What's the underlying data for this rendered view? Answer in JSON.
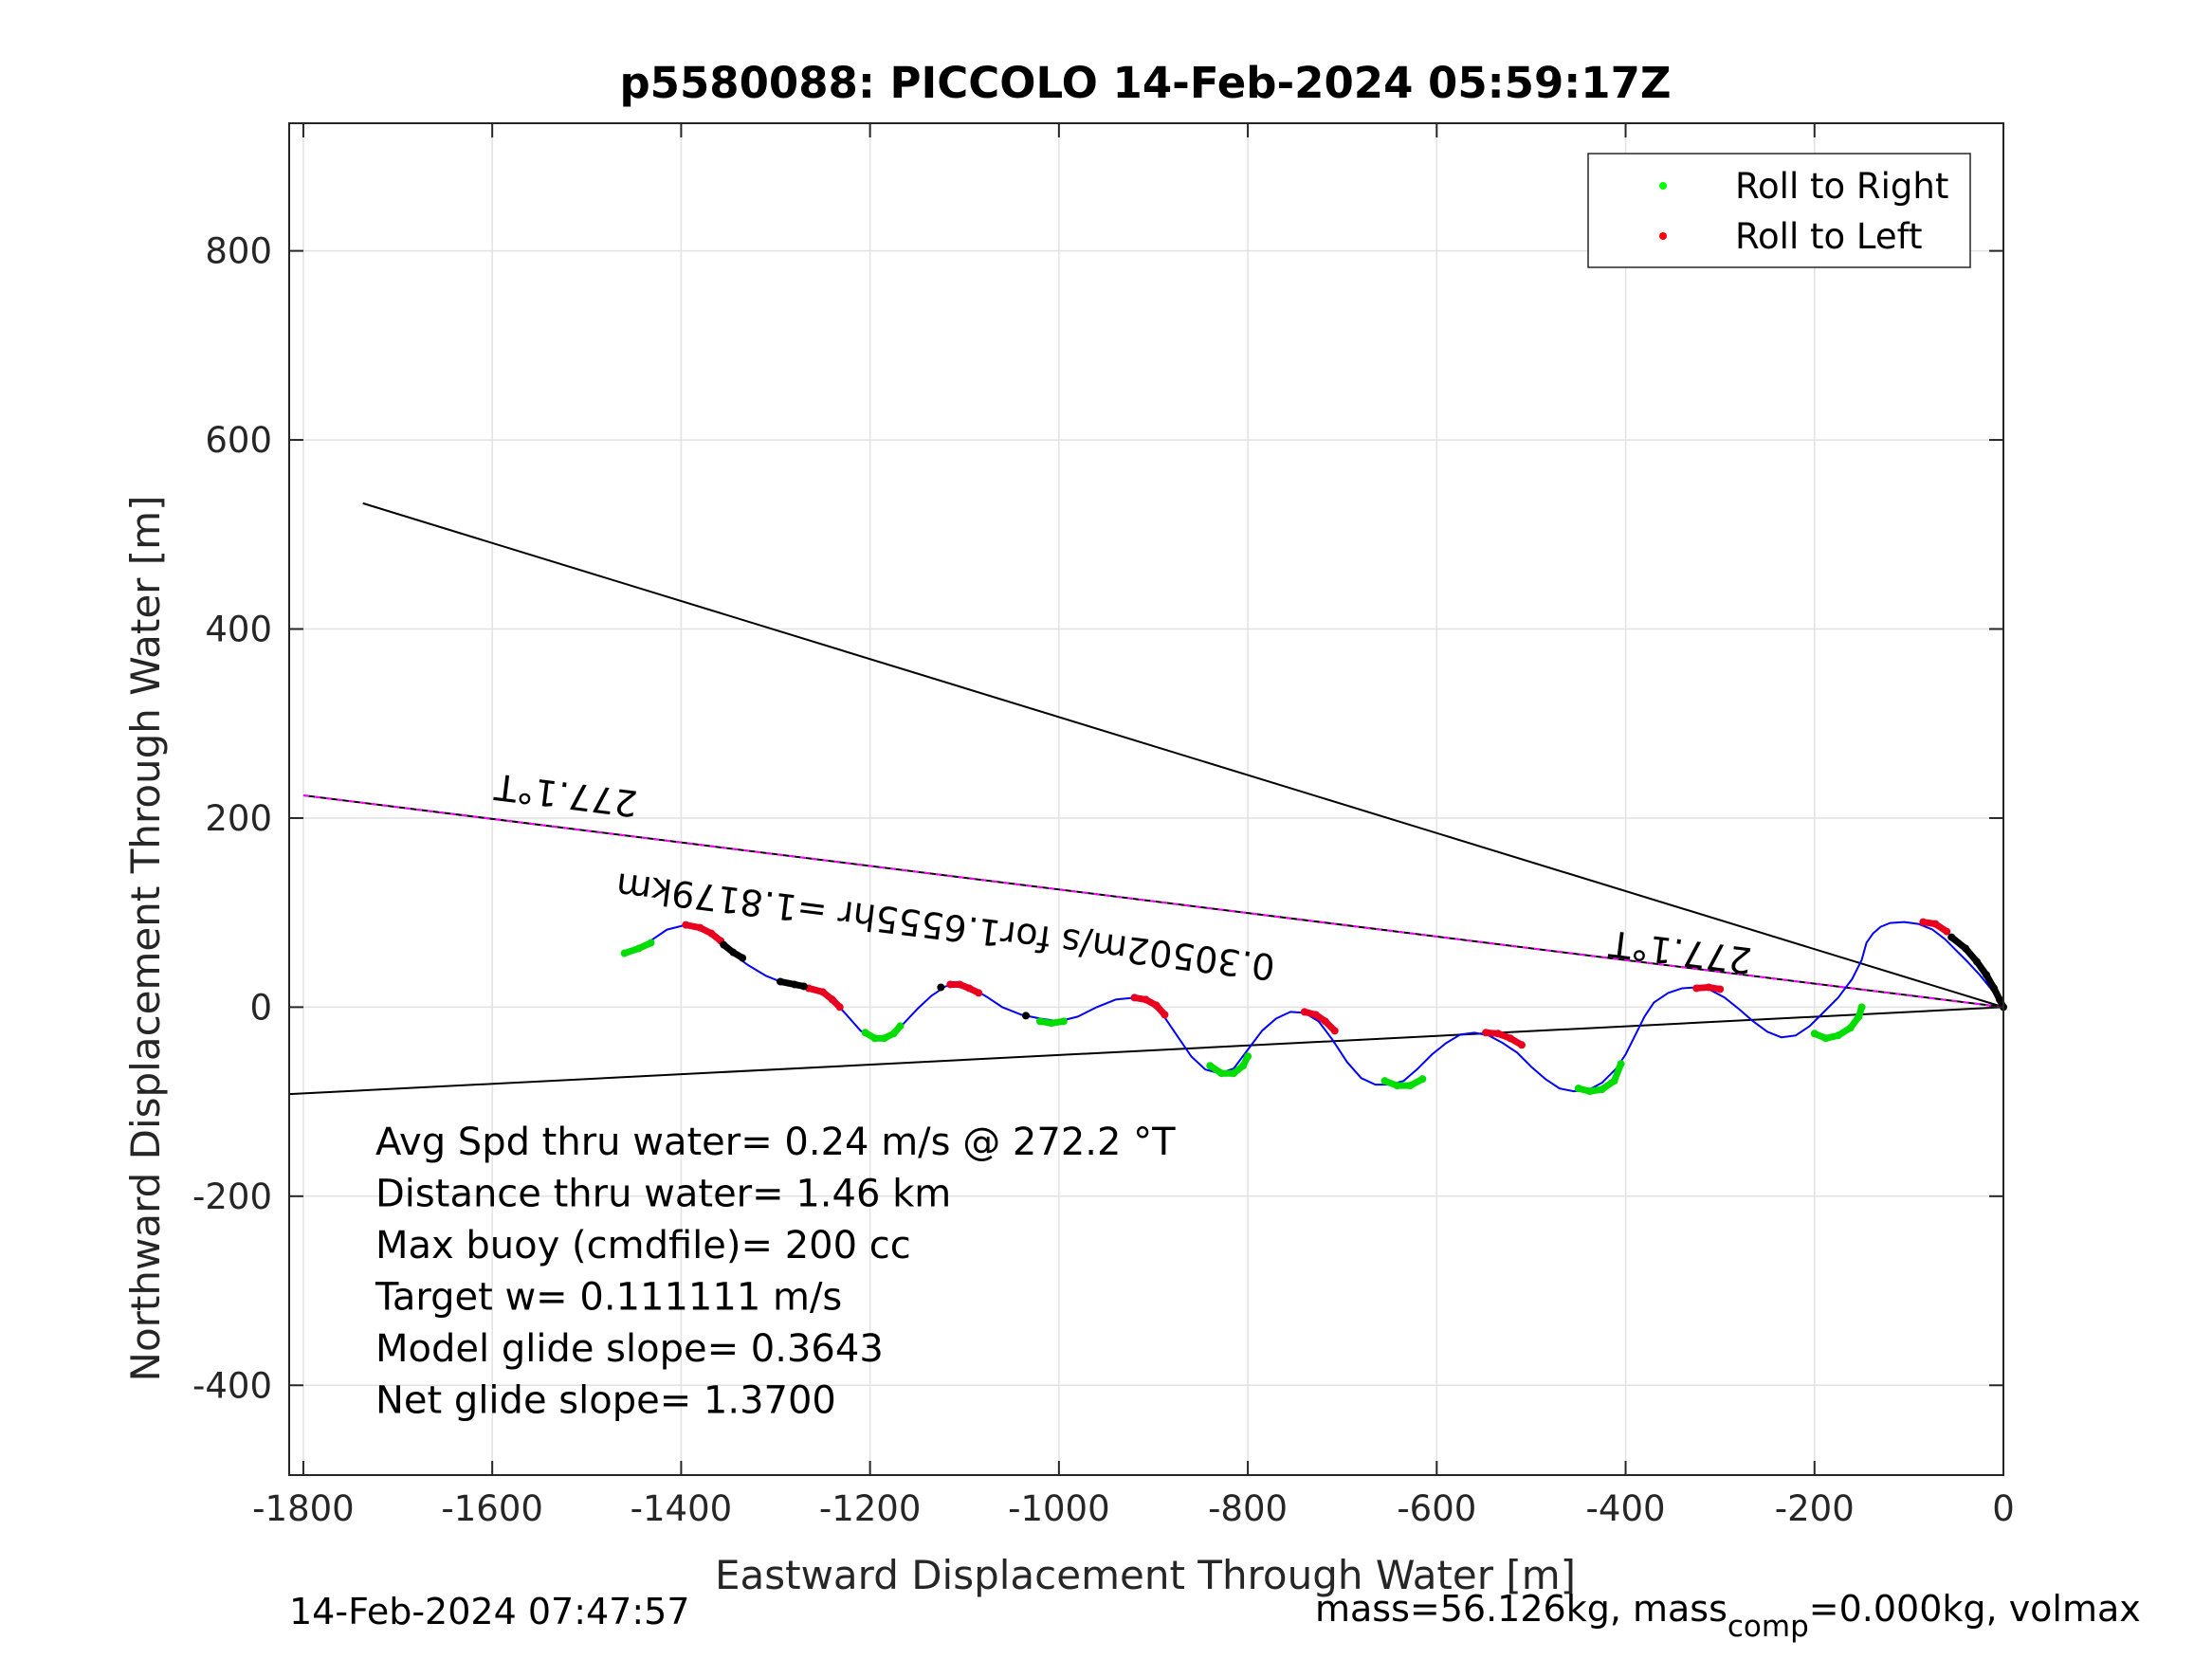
{
  "chart_data": {
    "type": "line",
    "title": "p5580088: PICCOLO 14-Feb-2024 05:59:17Z",
    "xlabel": "Eastward Displacement Through Water [m]",
    "ylabel": "Northward Displacement Through Water [m]",
    "xlim": [
      -1815,
      0
    ],
    "ylim": [
      -495,
      935
    ],
    "xticks": [
      -1800,
      -1600,
      -1400,
      -1200,
      -1000,
      -800,
      -600,
      -400,
      -200,
      0
    ],
    "yticks": [
      -400,
      -200,
      0,
      200,
      400,
      600,
      800
    ],
    "grid": true,
    "legend_position": "top-right",
    "legend": [
      {
        "label": "Roll to Right",
        "color": "#00ff00"
      },
      {
        "label": "Roll to Left",
        "color": "#ff0000"
      }
    ],
    "track": {
      "color": "#0000ff",
      "x": [
        -1460,
        -1440,
        -1415,
        -1395,
        -1380,
        -1365,
        -1350,
        -1330,
        -1310,
        -1290,
        -1270,
        -1255,
        -1240,
        -1225,
        -1210,
        -1195,
        -1180,
        -1165,
        -1150,
        -1135,
        -1120,
        -1105,
        -1090,
        -1075,
        -1060,
        -1040,
        -1020,
        -1000,
        -980,
        -960,
        -940,
        -920,
        -905,
        -890,
        -875,
        -860,
        -845,
        -830,
        -815,
        -800,
        -785,
        -770,
        -755,
        -740,
        -725,
        -710,
        -695,
        -680,
        -665,
        -650,
        -635,
        -620,
        -605,
        -590,
        -575,
        -560,
        -545,
        -530,
        -515,
        -500,
        -485,
        -470,
        -455,
        -440,
        -425,
        -410,
        -400,
        -390,
        -380,
        -370,
        -355,
        -340,
        -325,
        -310,
        -295,
        -280,
        -265,
        -250,
        -235,
        -220,
        -205,
        -190,
        -175,
        -160,
        -150,
        -145,
        -138,
        -130,
        -120,
        -105,
        -90,
        -75,
        -62,
        -50,
        -38,
        -25,
        -12,
        -5,
        0
      ],
      "y": [
        57,
        65,
        82,
        87,
        84,
        76,
        60,
        45,
        33,
        25,
        21,
        18,
        8,
        -8,
        -25,
        -33,
        -30,
        -18,
        -2,
        12,
        22,
        24,
        19,
        10,
        0,
        -8,
        -12,
        -15,
        -10,
        0,
        8,
        10,
        5,
        -8,
        -30,
        -52,
        -66,
        -70,
        -65,
        -45,
        -25,
        -12,
        -5,
        -6,
        -15,
        -35,
        -58,
        -75,
        -82,
        -82,
        -78,
        -65,
        -50,
        -38,
        -29,
        -27,
        -30,
        -38,
        -48,
        -63,
        -76,
        -86,
        -89,
        -88,
        -80,
        -65,
        -50,
        -30,
        -10,
        5,
        15,
        20,
        21,
        18,
        10,
        -2,
        -15,
        -26,
        -32,
        -30,
        -20,
        -5,
        10,
        30,
        50,
        68,
        78,
        85,
        89,
        90,
        88,
        82,
        72,
        60,
        48,
        34,
        18,
        7,
        0
      ]
    },
    "roll_right_segments": [
      {
        "x": [
          -1460,
          -1445,
          -1432
        ],
        "y": [
          57,
          62,
          68
        ]
      },
      {
        "x": [
          -1205,
          -1195,
          -1185,
          -1175,
          -1168
        ],
        "y": [
          -27,
          -33,
          -33,
          -28,
          -20
        ]
      },
      {
        "x": [
          -1020,
          -1008,
          -995
        ],
        "y": [
          -15,
          -17,
          -15
        ]
      },
      {
        "x": [
          -840,
          -828,
          -815,
          -805,
          -800
        ],
        "y": [
          -62,
          -70,
          -70,
          -62,
          -52
        ]
      },
      {
        "x": [
          -655,
          -642,
          -628,
          -615
        ],
        "y": [
          -78,
          -83,
          -83,
          -76
        ]
      },
      {
        "x": [
          -450,
          -438,
          -425,
          -412,
          -405
        ],
        "y": [
          -86,
          -89,
          -87,
          -78,
          -60
        ]
      },
      {
        "x": [
          -200,
          -188,
          -175,
          -162,
          -153,
          -150
        ],
        "y": [
          -28,
          -33,
          -30,
          -22,
          -10,
          0
        ]
      }
    ],
    "roll_left_segments": [
      {
        "x": [
          -1395,
          -1380,
          -1368,
          -1358
        ],
        "y": [
          87,
          84,
          78,
          70
        ]
      },
      {
        "x": [
          -1265,
          -1250,
          -1240,
          -1232
        ],
        "y": [
          20,
          16,
          8,
          0
        ]
      },
      {
        "x": [
          -1115,
          -1105,
          -1095,
          -1085
        ],
        "y": [
          24,
          24,
          20,
          15
        ]
      },
      {
        "x": [
          -920,
          -908,
          -897,
          -888
        ],
        "y": [
          10,
          8,
          2,
          -8
        ]
      },
      {
        "x": [
          -740,
          -728,
          -718,
          -708
        ],
        "y": [
          -5,
          -8,
          -15,
          -25
        ]
      },
      {
        "x": [
          -548,
          -535,
          -522,
          -510
        ],
        "y": [
          -27,
          -28,
          -33,
          -40
        ]
      },
      {
        "x": [
          -325,
          -312,
          -300
        ],
        "y": [
          20,
          21,
          19
        ]
      },
      {
        "x": [
          -85,
          -72,
          -60
        ],
        "y": [
          90,
          88,
          80
        ]
      }
    ],
    "surface_points": [
      {
        "x": [
          -1355,
          -1345,
          -1335
        ],
        "y": [
          66,
          58,
          52
        ]
      },
      {
        "x": [
          -1295,
          -1280,
          -1270
        ],
        "y": [
          27,
          24,
          22
        ]
      },
      {
        "x": [
          -1125
        ],
        "y": [
          21
        ]
      },
      {
        "x": [
          -1035
        ],
        "y": [
          -9
        ]
      },
      {
        "x": [
          -55,
          -40,
          -28,
          -18,
          -10,
          -4,
          0
        ],
        "y": [
          74,
          62,
          48,
          34,
          20,
          8,
          0
        ]
      }
    ],
    "heading_line": {
      "color": "#ff00ff",
      "x": [
        -1800,
        0
      ],
      "y": [
        224,
        0
      ]
    },
    "cone_lines": [
      {
        "color": "#000000",
        "x": [
          -1737,
          0
        ],
        "y": [
          533,
          0
        ]
      },
      {
        "color": "#000000",
        "x": [
          -1815,
          0
        ],
        "y": [
          -92,
          0
        ]
      }
    ],
    "annotations": [
      {
        "text": "277.1°T",
        "x": -1445,
        "y": 228,
        "angle": 187.1
      },
      {
        "text": "277.1°T",
        "x": -265,
        "y": 62,
        "angle": 187.1
      },
      {
        "text": "0.30502m/s for1.6555hr =1.8179km",
        "x": -770,
        "y": 55,
        "angle": 187.1
      }
    ],
    "stats_lines": [
      "Avg Spd thru water=  0.24 m/s @ 272.2 °T",
      "Distance thru water=  1.46 km",
      "Max buoy (cmdfile)= 200 cc",
      "Target w= 0.111111 m/s",
      "Model glide slope= 0.3643",
      "Net glide slope= 1.3700"
    ]
  },
  "footer": {
    "timestamp": "14-Feb-2024 07:47:57",
    "mass_prefix": "mass=56.126kg, mass",
    "mass_sub": "comp",
    "mass_suffix": "=0.000kg, volmax"
  }
}
